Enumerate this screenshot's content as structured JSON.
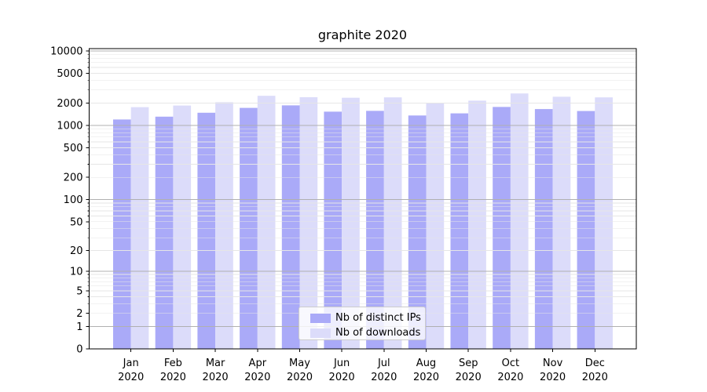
{
  "chart_data": {
    "type": "bar",
    "title": "graphite 2020",
    "categories": [
      "Jan",
      "Feb",
      "Mar",
      "Apr",
      "May",
      "Jun",
      "Jul",
      "Aug",
      "Sep",
      "Oct",
      "Nov",
      "Dec"
    ],
    "category_year": "2020",
    "series": [
      {
        "name": "Nb of distinct IPs",
        "color": "#aaaaf8",
        "values": [
          1200,
          1310,
          1480,
          1720,
          1860,
          1530,
          1570,
          1360,
          1450,
          1770,
          1660,
          1560
        ]
      },
      {
        "name": "Nb of downloads",
        "color": "#dcdcfa",
        "values": [
          1760,
          1850,
          2050,
          2500,
          2390,
          2350,
          2380,
          2020,
          2150,
          2690,
          2430,
          2380
        ]
      }
    ],
    "xlabel": "",
    "ylabel": "",
    "yscale": "log1p",
    "ylim": [
      0,
      10750
    ],
    "y_ticks_labeled": [
      0,
      1,
      2,
      5,
      10,
      20,
      50,
      100,
      200,
      500,
      1000,
      2000,
      5000,
      10000
    ],
    "y_ticks_minor": [
      3,
      4,
      6,
      7,
      8,
      9,
      30,
      40,
      60,
      70,
      80,
      90,
      300,
      400,
      600,
      700,
      800,
      900,
      3000,
      4000,
      6000,
      7000,
      8000,
      9000
    ],
    "grid": true,
    "grid_major_color": "#b0b0b0",
    "grid_minor_color": "#e6e6e6",
    "axis_color": "#000000",
    "legend": {
      "position": "lower center",
      "entries": [
        "Nb of distinct IPs",
        "Nb of downloads"
      ]
    }
  }
}
